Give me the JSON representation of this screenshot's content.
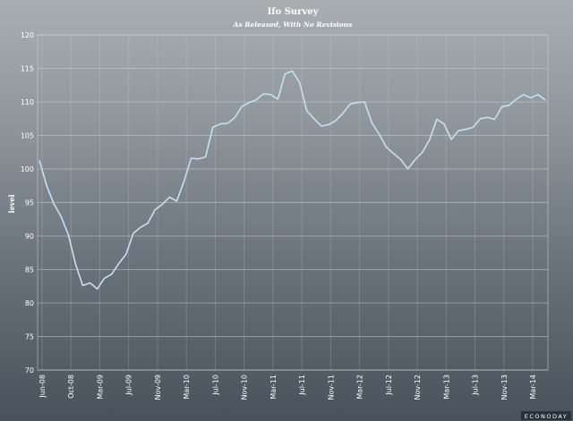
{
  "chart_data": {
    "type": "line",
    "title": "Ifo Survey",
    "subtitle": "As Released, With No Revisions",
    "xlabel": "",
    "ylabel": "level",
    "ylim": [
      70,
      120
    ],
    "yticks": [
      70,
      75,
      80,
      85,
      90,
      95,
      100,
      105,
      110,
      115,
      120
    ],
    "xtick_labels": [
      "Jun-08",
      "Oct-08",
      "Mar-09",
      "Jul-09",
      "Nov-09",
      "Mar-10",
      "Jul-10",
      "Nov-10",
      "Mar-11",
      "Jul-11",
      "Nov-11",
      "Mar-12",
      "Jul-12",
      "Nov-12",
      "Mar-13",
      "Jul-13",
      "Nov-13",
      "Mar-14"
    ],
    "grid": true,
    "legend": "none",
    "series": [
      {
        "color": "#c5e0f4",
        "values": [
          101.3,
          97.5,
          94.8,
          92.9,
          90.2,
          85.8,
          82.6,
          83.0,
          82.1,
          83.7,
          84.3,
          85.9,
          87.3,
          90.4,
          91.3,
          91.9,
          93.9,
          94.7,
          95.8,
          95.2,
          98.1,
          101.6,
          101.5,
          101.8,
          106.2,
          106.7,
          106.8,
          107.6,
          109.3,
          109.9,
          110.3,
          111.2,
          111.1,
          110.4,
          114.2,
          114.6,
          112.9,
          108.7,
          107.5,
          106.4,
          106.6,
          107.2,
          108.3,
          109.7,
          109.9,
          110.0,
          106.9,
          105.2,
          103.3,
          102.3,
          101.4,
          100.0,
          101.4,
          102.5,
          104.4,
          107.4,
          106.7,
          104.4,
          105.7,
          105.9,
          106.2,
          107.5,
          107.7,
          107.4,
          109.3,
          109.5,
          110.4,
          111.1,
          110.6,
          111.1,
          110.3
        ]
      }
    ]
  },
  "branding": {
    "logo_text": "ECONODAY"
  }
}
